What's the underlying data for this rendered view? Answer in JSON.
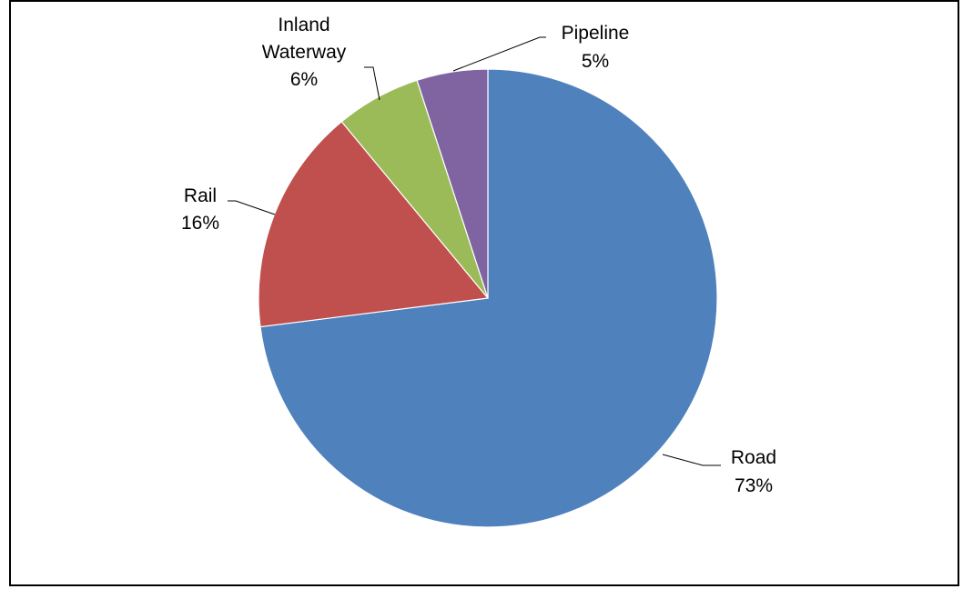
{
  "chart_data": {
    "type": "pie",
    "title": "",
    "start_angle_deg": 0,
    "direction": "clockwise",
    "slices": [
      {
        "name": "Road",
        "value": 73,
        "label": "73%",
        "color": "#4f81bd"
      },
      {
        "name": "Rail",
        "value": 16,
        "label": "16%",
        "color": "#c0504d"
      },
      {
        "name": "Inland Waterway",
        "name_lines": [
          "Inland",
          "Waterway"
        ],
        "value": 6,
        "label": "6%",
        "color": "#9bbb59"
      },
      {
        "name": "Pipeline",
        "value": 5,
        "label": "5%",
        "color": "#8064a2"
      }
    ],
    "legend": "none",
    "data_labels": "outside-with-leader-lines"
  }
}
